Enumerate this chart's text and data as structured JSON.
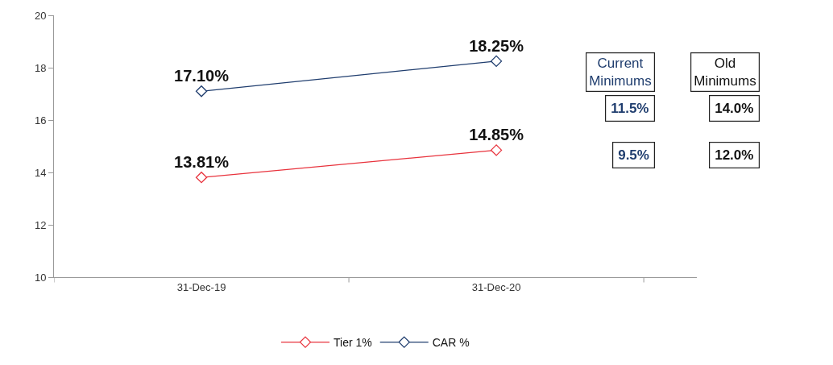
{
  "chart_data": {
    "type": "line",
    "categories": [
      "31-Dec-19",
      "31-Dec-20"
    ],
    "series": [
      {
        "name": "Tier 1%",
        "color": "#e8323c",
        "values": [
          13.81,
          14.85
        ],
        "value_labels": [
          "13.81%",
          "14.85%"
        ]
      },
      {
        "name": "CAR %",
        "color": "#1f3d6e",
        "values": [
          17.1,
          18.25
        ],
        "value_labels": [
          "17.10%",
          "18.25%"
        ]
      }
    ],
    "ylim": [
      10,
      20
    ],
    "yticks": [
      10,
      12,
      14,
      16,
      18,
      20
    ],
    "marker": "diamond",
    "line_style": "solid",
    "legend": "bottom",
    "annotations": [
      "Current\nMinimums",
      "Old\nMinimums",
      "11.5%",
      "14.0%",
      "9.5%",
      "12.0%"
    ]
  }
}
